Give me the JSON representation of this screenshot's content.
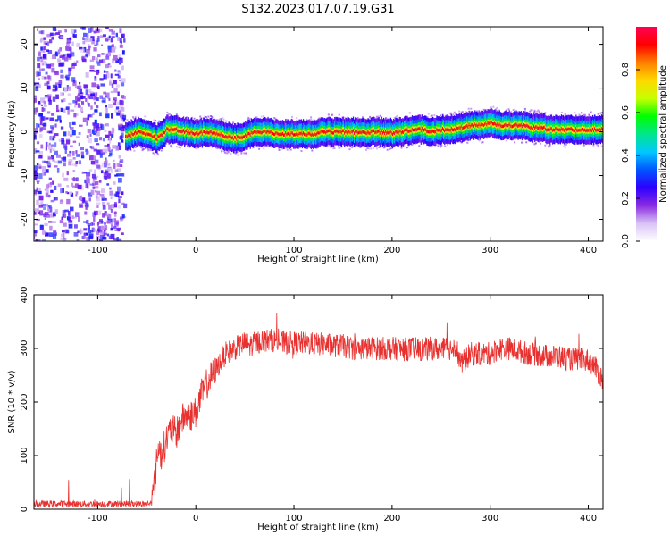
{
  "figure_title": "S132.2023.017.07.19.G31",
  "chart_data": [
    {
      "type": "heatmap",
      "xlabel": "Height of straight line (km)",
      "ylabel": "Frequency (Hz)",
      "xlim": [
        -165,
        415
      ],
      "ylim": [
        -25,
        24
      ],
      "xticks": [
        -100,
        0,
        100,
        200,
        300,
        400
      ],
      "yticks": [
        -20,
        -10,
        0,
        10,
        20
      ],
      "colorbar": {
        "label": "Normalized spectral amplitude",
        "range": [
          0,
          1
        ],
        "ticks": [
          "0.0",
          "0.2",
          "0.4",
          "0.6",
          "0.8"
        ],
        "colors": [
          "#ffffff",
          "#d9c2f5",
          "#8a2be2",
          "#2c00ff",
          "#0055ff",
          "#00c8ff",
          "#00e68a",
          "#00ff00",
          "#c8ff00",
          "#ffd800",
          "#ff7f00",
          "#ff0000",
          "#ff0055"
        ]
      },
      "noise_region_x": [
        -165,
        -72
      ],
      "ridge": {
        "x": [
          -70,
          -60,
          -50,
          -40,
          -30,
          -20,
          -10,
          0,
          10,
          20,
          30,
          40,
          50,
          60,
          70,
          80,
          90,
          100,
          110,
          120,
          130,
          140,
          150,
          160,
          170,
          180,
          190,
          200,
          210,
          220,
          230,
          240,
          250,
          260,
          270,
          280,
          290,
          300,
          310,
          320,
          330,
          340,
          350,
          360,
          370,
          380,
          390,
          400,
          410
        ],
        "y": [
          -1.0,
          0.0,
          -0.5,
          -1.5,
          0.5,
          0.5,
          0.0,
          -0.5,
          0.0,
          -0.5,
          -1.0,
          -1.5,
          -1.0,
          0.0,
          0.0,
          -0.3,
          -0.5,
          -0.5,
          -0.5,
          -0.5,
          0.0,
          0.0,
          0.0,
          0.0,
          -0.3,
          0.0,
          0.0,
          -0.3,
          0.0,
          0.5,
          0.5,
          0.0,
          0.5,
          0.5,
          1.0,
          1.5,
          1.5,
          2.0,
          1.5,
          1.5,
          1.5,
          1.0,
          1.0,
          0.5,
          0.5,
          0.5,
          0.5,
          0.5,
          0.5
        ]
      }
    },
    {
      "type": "line",
      "xlabel": "Height of straight line (km)",
      "ylabel": "SNR (10 * v/v)",
      "xlim": [
        -165,
        415
      ],
      "ylim": [
        0,
        400
      ],
      "xticks": [
        -100,
        0,
        100,
        200,
        300,
        400
      ],
      "yticks": [
        0,
        100,
        200,
        300,
        400
      ],
      "color": "#e8312f",
      "series": [
        {
          "x": [
            -165,
            -140,
            -120,
            -100,
            -80,
            -60,
            -50,
            -45,
            -42,
            -38,
            -35,
            -30,
            -25,
            -20,
            -15,
            -10,
            -5,
            0,
            5,
            10,
            15,
            20,
            25,
            30,
            35,
            40,
            45,
            50,
            55,
            60,
            70,
            80,
            90,
            100,
            110,
            120,
            130,
            140,
            150,
            160,
            170,
            180,
            190,
            200,
            210,
            220,
            230,
            240,
            250,
            260,
            265,
            270,
            280,
            290,
            300,
            310,
            320,
            330,
            340,
            350,
            360,
            370,
            380,
            390,
            400,
            405,
            410,
            415
          ],
          "y": [
            10,
            10,
            10,
            10,
            10,
            10,
            10,
            12,
            50,
            120,
            100,
            130,
            150,
            140,
            165,
            175,
            175,
            180,
            210,
            230,
            245,
            260,
            275,
            290,
            295,
            300,
            305,
            310,
            305,
            310,
            315,
            315,
            310,
            310,
            310,
            308,
            308,
            305,
            305,
            300,
            300,
            300,
            300,
            300,
            298,
            300,
            298,
            300,
            298,
            300,
            305,
            270,
            290,
            290,
            290,
            300,
            300,
            295,
            290,
            288,
            285,
            285,
            280,
            280,
            278,
            270,
            255,
            240
          ]
        }
      ]
    }
  ]
}
